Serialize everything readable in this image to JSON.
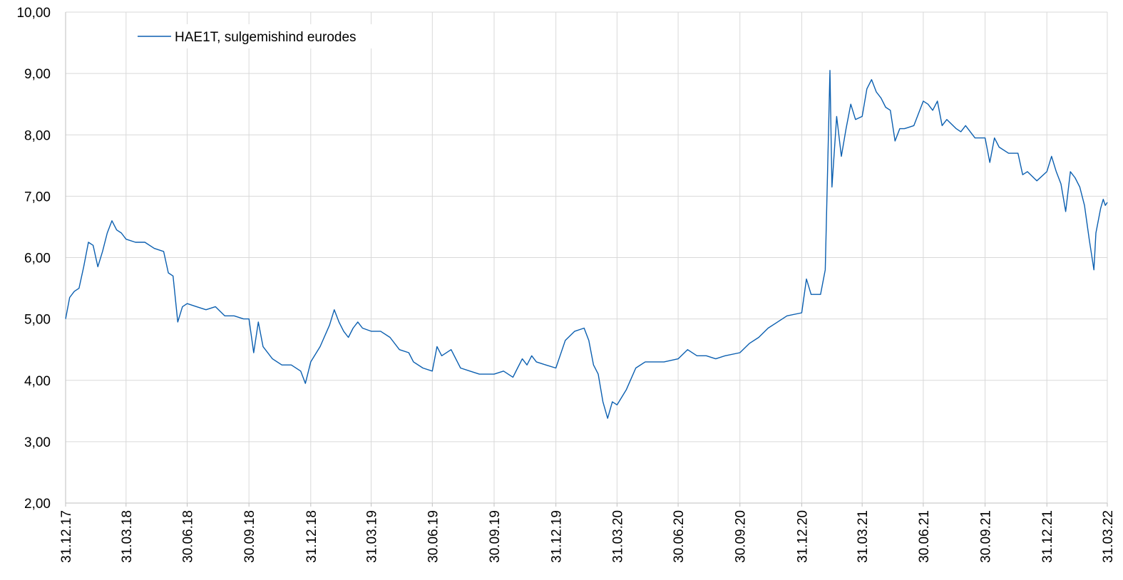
{
  "chart_data": {
    "type": "line",
    "title": "",
    "xlabel": "",
    "ylabel": "",
    "ylim": [
      2,
      10
    ],
    "y_ticks": [
      "2,00",
      "3,00",
      "4,00",
      "5,00",
      "6,00",
      "7,00",
      "8,00",
      "9,00",
      "10,00"
    ],
    "x_ticks": [
      "31.12.17",
      "31.03.18",
      "30.06.18",
      "30.09.18",
      "31.12.18",
      "31.03.19",
      "30.06.19",
      "30.09.19",
      "31.12.19",
      "31.03.20",
      "30.06.20",
      "30.09.20",
      "31.12.20",
      "31.03.21",
      "30.06.21",
      "30.09.21",
      "31.12.21",
      "31.03.22"
    ],
    "grid": "vertical and horizontal",
    "legend_position": "top-left",
    "series": [
      {
        "name": "HAE1T, sulgemishind eurodes",
        "color": "#0b5fb0",
        "points": [
          [
            "31.12.17",
            5.0
          ],
          [
            "06.01.18",
            5.35
          ],
          [
            "13.01.18",
            5.45
          ],
          [
            "20.01.18",
            5.5
          ],
          [
            "27.01.18",
            5.85
          ],
          [
            "03.02.18",
            6.25
          ],
          [
            "10.02.18",
            6.2
          ],
          [
            "17.02.18",
            5.85
          ],
          [
            "24.02.18",
            6.1
          ],
          [
            "03.03.18",
            6.4
          ],
          [
            "10.03.18",
            6.6
          ],
          [
            "17.03.18",
            6.45
          ],
          [
            "24.03.18",
            6.4
          ],
          [
            "31.03.18",
            6.3
          ],
          [
            "14.04.18",
            6.25
          ],
          [
            "28.04.18",
            6.25
          ],
          [
            "12.05.18",
            6.15
          ],
          [
            "26.05.18",
            6.1
          ],
          [
            "02.06.18",
            5.75
          ],
          [
            "09.06.18",
            5.7
          ],
          [
            "16.06.18",
            4.95
          ],
          [
            "23.06.18",
            5.2
          ],
          [
            "30.06.18",
            5.25
          ],
          [
            "14.07.18",
            5.2
          ],
          [
            "28.07.18",
            5.15
          ],
          [
            "11.08.18",
            5.2
          ],
          [
            "25.08.18",
            5.05
          ],
          [
            "08.09.18",
            5.05
          ],
          [
            "22.09.18",
            5.0
          ],
          [
            "30.09.18",
            5.0
          ],
          [
            "07.10.18",
            4.45
          ],
          [
            "14.10.18",
            4.95
          ],
          [
            "21.10.18",
            4.55
          ],
          [
            "04.11.18",
            4.35
          ],
          [
            "18.11.18",
            4.25
          ],
          [
            "02.12.18",
            4.25
          ],
          [
            "16.12.18",
            4.15
          ],
          [
            "23.12.18",
            3.95
          ],
          [
            "31.12.18",
            4.3
          ],
          [
            "14.01.19",
            4.55
          ],
          [
            "28.01.19",
            4.9
          ],
          [
            "04.02.19",
            5.15
          ],
          [
            "11.02.19",
            4.95
          ],
          [
            "18.02.19",
            4.8
          ],
          [
            "25.02.19",
            4.7
          ],
          [
            "04.03.19",
            4.85
          ],
          [
            "11.03.19",
            4.95
          ],
          [
            "18.03.19",
            4.85
          ],
          [
            "31.03.19",
            4.8
          ],
          [
            "14.04.19",
            4.8
          ],
          [
            "28.04.19",
            4.7
          ],
          [
            "12.05.19",
            4.5
          ],
          [
            "26.05.19",
            4.45
          ],
          [
            "02.06.19",
            4.3
          ],
          [
            "16.06.19",
            4.2
          ],
          [
            "30.06.19",
            4.15
          ],
          [
            "07.07.19",
            4.55
          ],
          [
            "14.07.19",
            4.4
          ],
          [
            "28.07.19",
            4.5
          ],
          [
            "11.08.19",
            4.2
          ],
          [
            "25.08.19",
            4.15
          ],
          [
            "08.09.19",
            4.1
          ],
          [
            "22.09.19",
            4.1
          ],
          [
            "30.09.19",
            4.1
          ],
          [
            "14.10.19",
            4.15
          ],
          [
            "28.10.19",
            4.05
          ],
          [
            "04.11.19",
            4.2
          ],
          [
            "11.11.19",
            4.35
          ],
          [
            "18.11.19",
            4.25
          ],
          [
            "25.11.19",
            4.4
          ],
          [
            "02.12.19",
            4.3
          ],
          [
            "16.12.19",
            4.25
          ],
          [
            "31.12.19",
            4.2
          ],
          [
            "14.01.20",
            4.65
          ],
          [
            "28.01.20",
            4.8
          ],
          [
            "11.02.20",
            4.85
          ],
          [
            "18.02.20",
            4.65
          ],
          [
            "25.02.20",
            4.25
          ],
          [
            "03.03.20",
            4.1
          ],
          [
            "10.03.20",
            3.65
          ],
          [
            "17.03.20",
            3.38
          ],
          [
            "24.03.20",
            3.65
          ],
          [
            "31.03.20",
            3.6
          ],
          [
            "14.04.20",
            3.85
          ],
          [
            "28.04.20",
            4.2
          ],
          [
            "12.05.20",
            4.3
          ],
          [
            "26.05.20",
            4.3
          ],
          [
            "09.06.20",
            4.3
          ],
          [
            "30.06.20",
            4.35
          ],
          [
            "14.07.20",
            4.5
          ],
          [
            "28.07.20",
            4.4
          ],
          [
            "11.08.20",
            4.4
          ],
          [
            "25.08.20",
            4.35
          ],
          [
            "08.09.20",
            4.4
          ],
          [
            "30.09.20",
            4.45
          ],
          [
            "14.10.20",
            4.6
          ],
          [
            "28.10.20",
            4.7
          ],
          [
            "11.11.20",
            4.85
          ],
          [
            "25.11.20",
            4.95
          ],
          [
            "09.12.20",
            5.05
          ],
          [
            "31.12.20",
            5.1
          ],
          [
            "07.01.21",
            5.65
          ],
          [
            "14.01.21",
            5.4
          ],
          [
            "28.01.21",
            5.4
          ],
          [
            "04.02.21",
            5.8
          ],
          [
            "11.02.21",
            9.05
          ],
          [
            "14.02.21",
            7.15
          ],
          [
            "21.02.21",
            8.3
          ],
          [
            "28.02.21",
            7.65
          ],
          [
            "07.03.21",
            8.1
          ],
          [
            "14.03.21",
            8.5
          ],
          [
            "21.03.21",
            8.25
          ],
          [
            "31.03.21",
            8.3
          ],
          [
            "07.04.21",
            8.75
          ],
          [
            "14.04.21",
            8.9
          ],
          [
            "21.04.21",
            8.7
          ],
          [
            "28.04.21",
            8.6
          ],
          [
            "05.05.21",
            8.45
          ],
          [
            "12.05.21",
            8.4
          ],
          [
            "19.05.21",
            7.9
          ],
          [
            "26.05.21",
            8.1
          ],
          [
            "02.06.21",
            8.1
          ],
          [
            "16.06.21",
            8.15
          ],
          [
            "30.06.21",
            8.55
          ],
          [
            "07.07.21",
            8.5
          ],
          [
            "14.07.21",
            8.4
          ],
          [
            "21.07.21",
            8.55
          ],
          [
            "28.07.21",
            8.15
          ],
          [
            "04.08.21",
            8.25
          ],
          [
            "18.08.21",
            8.1
          ],
          [
            "25.08.21",
            8.05
          ],
          [
            "01.09.21",
            8.15
          ],
          [
            "15.09.21",
            7.95
          ],
          [
            "30.09.21",
            7.95
          ],
          [
            "07.10.21",
            7.55
          ],
          [
            "14.10.21",
            7.95
          ],
          [
            "21.10.21",
            7.8
          ],
          [
            "04.11.21",
            7.7
          ],
          [
            "18.11.21",
            7.7
          ],
          [
            "25.11.21",
            7.35
          ],
          [
            "02.12.21",
            7.4
          ],
          [
            "16.12.21",
            7.25
          ],
          [
            "31.12.21",
            7.4
          ],
          [
            "07.01.22",
            7.65
          ],
          [
            "14.01.22",
            7.4
          ],
          [
            "21.01.22",
            7.2
          ],
          [
            "28.01.22",
            6.75
          ],
          [
            "04.02.22",
            7.4
          ],
          [
            "11.02.22",
            7.3
          ],
          [
            "18.02.22",
            7.15
          ],
          [
            "25.02.22",
            6.85
          ],
          [
            "04.03.22",
            6.3
          ],
          [
            "11.03.22",
            5.8
          ],
          [
            "14.03.22",
            6.4
          ],
          [
            "21.03.22",
            6.8
          ],
          [
            "25.03.22",
            6.95
          ],
          [
            "28.03.22",
            6.85
          ],
          [
            "31.03.22",
            6.9
          ]
        ]
      }
    ]
  }
}
